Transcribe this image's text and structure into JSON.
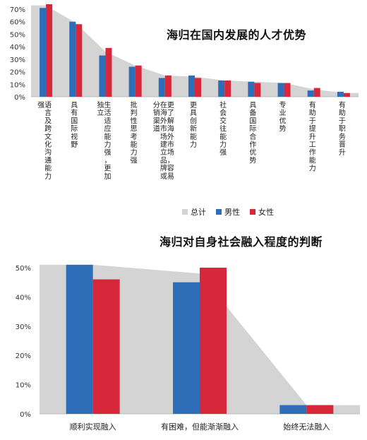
{
  "chart_data": [
    {
      "type": "bar",
      "title": "海归在国内发展的人才优势",
      "ylim": [
        0,
        70
      ],
      "yticks": [
        "0%",
        "10%",
        "20%",
        "30%",
        "40%",
        "50%",
        "60%",
        "70%"
      ],
      "categories": [
        "语言及跨文化沟通能力强",
        "具有国际视野",
        "生活适应能力强，更加独立",
        "批判性思考能力强",
        "更了解海外市场，容易在海外市场建立品牌或分销渠道",
        "更具创新能力",
        "社会交往能力强",
        "具备国际合作优势",
        "专业优势",
        "有助于提升工作能力",
        "有助于职务晋升"
      ],
      "series": [
        {
          "name": "总计",
          "type": "area",
          "color": "#d4d4d4",
          "values": [
            73,
            59,
            36,
            25,
            17,
            16,
            13,
            12,
            11,
            6,
            3
          ]
        },
        {
          "name": "男性",
          "type": "bar",
          "color": "#2e6db8",
          "values": [
            71,
            60,
            33,
            24,
            15,
            17,
            13,
            12,
            11,
            5,
            4
          ]
        },
        {
          "name": "女性",
          "type": "bar",
          "color": "#d7283b",
          "values": [
            74,
            58,
            39,
            25,
            17,
            15,
            13,
            11,
            11,
            7,
            3
          ]
        }
      ],
      "legend_position": "bottom",
      "grid": false
    },
    {
      "type": "bar",
      "title": "海归对自身社会融入程度的判断",
      "ylim": [
        0,
        50
      ],
      "yticks": [
        "0%",
        "10%",
        "20%",
        "30%",
        "40%",
        "50%"
      ],
      "categories": [
        "顺利实现融入",
        "有困难，但能渐渐融入",
        "始终无法融入"
      ],
      "series": [
        {
          "type": "area",
          "color": "#d4d4d4",
          "values": [
            51,
            48,
            3
          ]
        },
        {
          "type": "bar",
          "color": "#2e6db8",
          "values": [
            51,
            45,
            3
          ]
        },
        {
          "type": "bar",
          "color": "#d7283b",
          "values": [
            46,
            50,
            3
          ]
        }
      ],
      "grid": false
    }
  ]
}
